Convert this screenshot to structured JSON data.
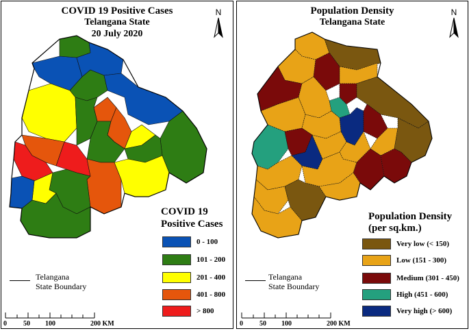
{
  "left_map": {
    "title_line1": "COVID 19 Positive Cases",
    "title_line2": "Telangana State",
    "title_line3": "20 July 2020",
    "north_label": "N",
    "legend": {
      "title_line1": "COVID 19",
      "title_line2": "Positive Cases",
      "items": [
        {
          "label": "0 - 100",
          "color": "#0a52b5"
        },
        {
          "label": "101 - 200",
          "color": "#2e7d14"
        },
        {
          "label": "201 - 400",
          "color": "#ffff00"
        },
        {
          "label": "401 - 800",
          "color": "#e5560c"
        },
        {
          "label": "> 800",
          "color": "#ee1c1c"
        }
      ]
    },
    "boundary": {
      "line1": "Telangana",
      "line2": "State Boundary"
    },
    "scale": {
      "tick0": "0",
      "tick1": "50",
      "tick2": "100",
      "tick3": "200 KM"
    }
  },
  "right_map": {
    "title_line1": "Population Density",
    "title_line2": "Telangana State",
    "north_label": "N",
    "legend": {
      "title_line1": "Population Density",
      "title_line2": "(per sq.km.)",
      "items": [
        {
          "label": "Very low (< 150)",
          "color": "#7a5710"
        },
        {
          "label": "Low (151 - 300)",
          "color": "#e8a317"
        },
        {
          "label": "Medium (301 - 450)",
          "color": "#7a0a0a"
        },
        {
          "label": "High (451 - 600)",
          "color": "#24a07e"
        },
        {
          "label": "Very high (> 600)",
          "color": "#0a2a80"
        }
      ]
    },
    "boundary": {
      "line1": "Telangana",
      "line2": "State Boundary"
    },
    "scale": {
      "tick0": "0",
      "tick1": "50",
      "tick2": "100",
      "tick3": "200 KM"
    }
  }
}
